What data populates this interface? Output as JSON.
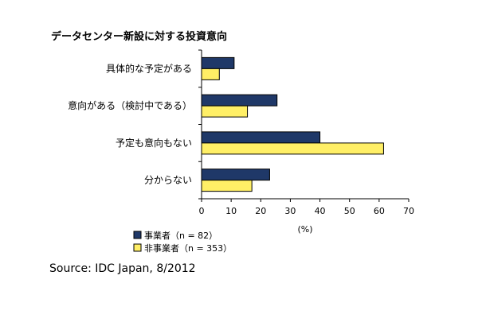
{
  "chart_data": {
    "type": "bar",
    "orientation": "horizontal",
    "title": "データセンター新設に対する投資意向",
    "categories": [
      "具体的な予定がある",
      "意向がある（検討中である）",
      "予定も意向もない",
      "分からない"
    ],
    "series": [
      {
        "name": "事業者（n = 82）",
        "color": "#1f3868",
        "values": [
          11,
          25.5,
          40,
          23
        ]
      },
      {
        "name": "非事業者（n = 353）",
        "color": "#ffef66",
        "values": [
          6,
          15.5,
          61.5,
          17
        ]
      }
    ],
    "xlabel": "(%)",
    "xlim": [
      0,
      70
    ],
    "xticks": [
      0,
      10,
      20,
      30,
      40,
      50,
      60,
      70
    ],
    "legend": "bottom-left",
    "grid": false
  },
  "source": "Source: IDC Japan, 8/2012"
}
